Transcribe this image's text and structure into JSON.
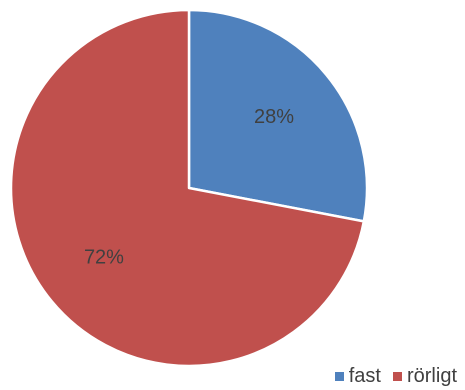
{
  "chart_data": {
    "type": "pie",
    "slices": [
      {
        "name": "fast",
        "value": 28,
        "label": "28%",
        "color": "#4F81BD"
      },
      {
        "name": "rörligt",
        "value": 72,
        "label": "72%",
        "color": "#C0504D"
      }
    ],
    "start_angle": "12 o'clock",
    "direction": "clockwise",
    "legend_position": "bottom-right"
  }
}
